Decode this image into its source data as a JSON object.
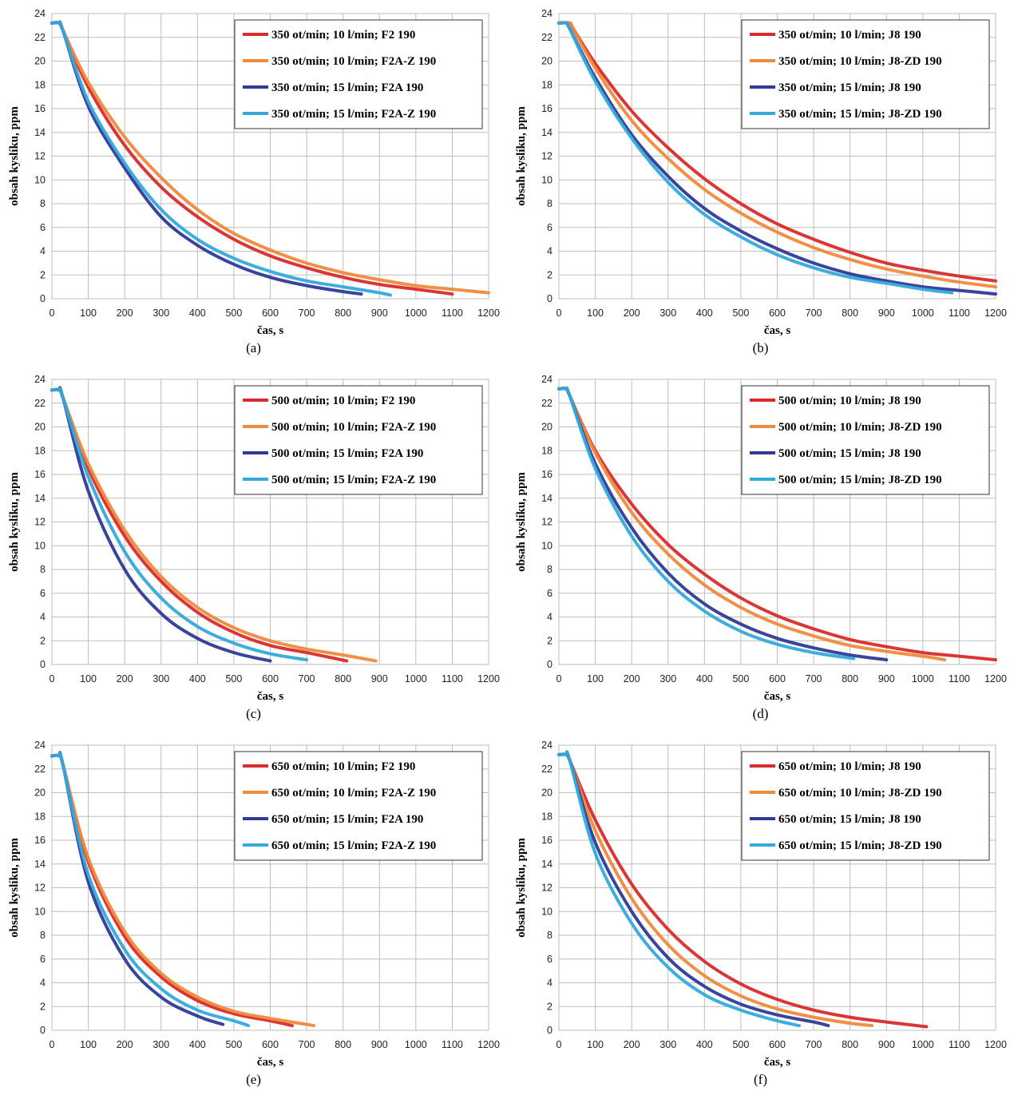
{
  "chart_data": [
    {
      "type": "line",
      "caption": "(a)",
      "xlabel": "čas, s",
      "ylabel": "obsah kyslíku, ppm",
      "xlim": [
        0,
        1200
      ],
      "ylim": [
        0,
        24
      ],
      "xticks": [
        0,
        100,
        200,
        300,
        400,
        500,
        600,
        700,
        800,
        900,
        1000,
        1100,
        1200
      ],
      "yticks": [
        0,
        2,
        4,
        6,
        8,
        10,
        12,
        14,
        16,
        18,
        20,
        22,
        24
      ],
      "grid": true,
      "legend_position": "top-right",
      "series": [
        {
          "name": "350 ot/min; 10 l/min; F2 190",
          "color": "#d92b2b",
          "x": [
            0,
            20,
            30,
            100,
            200,
            300,
            400,
            500,
            600,
            700,
            800,
            900,
            1000,
            1100
          ],
          "y": [
            23.2,
            23.2,
            22.6,
            17.8,
            12.9,
            9.4,
            6.9,
            5.0,
            3.6,
            2.6,
            1.8,
            1.2,
            0.8,
            0.4
          ]
        },
        {
          "name": "350 ot/min; 10 l/min; F2A-Z 190",
          "color": "#ef8a3c",
          "x": [
            0,
            20,
            30,
            100,
            200,
            300,
            400,
            500,
            600,
            700,
            800,
            900,
            1000,
            1100,
            1200
          ],
          "y": [
            23.2,
            23.2,
            22.6,
            18.2,
            13.6,
            10.2,
            7.5,
            5.5,
            4.1,
            3.0,
            2.2,
            1.6,
            1.1,
            0.8,
            0.5
          ]
        },
        {
          "name": "350 ot/min; 15 l/min; F2A 190",
          "color": "#2e3a96",
          "x": [
            0,
            20,
            30,
            100,
            200,
            300,
            400,
            500,
            600,
            700,
            800,
            850
          ],
          "y": [
            23.2,
            23.2,
            22.6,
            16.2,
            11.0,
            6.9,
            4.5,
            2.9,
            1.8,
            1.1,
            0.6,
            0.4
          ]
        },
        {
          "name": "350 ot/min; 15 l/min; F2A-Z 190",
          "color": "#33a9dc",
          "x": [
            0,
            20,
            30,
            100,
            200,
            300,
            400,
            500,
            600,
            700,
            800,
            900,
            930
          ],
          "y": [
            23.2,
            23.2,
            22.6,
            16.6,
            11.4,
            7.5,
            5.0,
            3.4,
            2.3,
            1.5,
            1.0,
            0.5,
            0.3
          ]
        }
      ]
    },
    {
      "type": "line",
      "caption": "(b)",
      "xlabel": "čas, s",
      "ylabel": "obsah kyslíku, ppm",
      "xlim": [
        0,
        1200
      ],
      "ylim": [
        0,
        24
      ],
      "xticks": [
        0,
        100,
        200,
        300,
        400,
        500,
        600,
        700,
        800,
        900,
        1000,
        1100,
        1200
      ],
      "yticks": [
        0,
        2,
        4,
        6,
        8,
        10,
        12,
        14,
        16,
        18,
        20,
        22,
        24
      ],
      "grid": true,
      "legend_position": "top-right",
      "series": [
        {
          "name": "350 ot/min; 10 l/min; J8 190",
          "color": "#d92b2b",
          "x": [
            0,
            30,
            40,
            100,
            200,
            300,
            400,
            500,
            600,
            700,
            800,
            900,
            1000,
            1100,
            1200
          ],
          "y": [
            23.2,
            23.2,
            22.7,
            19.8,
            15.8,
            12.7,
            10.1,
            8.0,
            6.3,
            5.0,
            3.9,
            3.0,
            2.4,
            1.9,
            1.5
          ]
        },
        {
          "name": "350 ot/min; 10 l/min; J8-ZD 190",
          "color": "#ef8a3c",
          "x": [
            0,
            30,
            40,
            100,
            200,
            300,
            400,
            500,
            600,
            700,
            800,
            900,
            1000,
            1100,
            1200
          ],
          "y": [
            23.2,
            23.2,
            22.7,
            19.4,
            15.0,
            11.8,
            9.2,
            7.2,
            5.6,
            4.3,
            3.3,
            2.5,
            1.9,
            1.4,
            1.0
          ]
        },
        {
          "name": "350 ot/min; 15 l/min; J8 190",
          "color": "#2e3a96",
          "x": [
            0,
            20,
            30,
            100,
            200,
            300,
            400,
            500,
            600,
            700,
            800,
            900,
            1000,
            1100,
            1200
          ],
          "y": [
            23.2,
            23.2,
            22.7,
            18.6,
            13.8,
            10.3,
            7.6,
            5.7,
            4.2,
            3.0,
            2.1,
            1.5,
            1.0,
            0.7,
            0.4
          ]
        },
        {
          "name": "350 ot/min; 15 l/min; J8-ZD 190",
          "color": "#33a9dc",
          "x": [
            0,
            20,
            30,
            100,
            200,
            300,
            400,
            500,
            600,
            700,
            800,
            900,
            1000,
            1080
          ],
          "y": [
            23.2,
            23.2,
            22.7,
            18.3,
            13.5,
            9.8,
            7.1,
            5.2,
            3.7,
            2.6,
            1.8,
            1.3,
            0.8,
            0.5
          ]
        }
      ]
    },
    {
      "type": "line",
      "caption": "(c)",
      "xlabel": "čas, s",
      "ylabel": "obsah kyslíku, ppm",
      "xlim": [
        0,
        1200
      ],
      "ylim": [
        0,
        24
      ],
      "xticks": [
        0,
        100,
        200,
        300,
        400,
        500,
        600,
        700,
        800,
        900,
        1000,
        1100,
        1200
      ],
      "yticks": [
        0,
        2,
        4,
        6,
        8,
        10,
        12,
        14,
        16,
        18,
        20,
        22,
        24
      ],
      "grid": true,
      "legend_position": "top-right",
      "series": [
        {
          "name": "500 ot/min; 10 l/min; F2 190",
          "color": "#d92b2b",
          "x": [
            0,
            20,
            30,
            100,
            200,
            300,
            400,
            500,
            600,
            700,
            810
          ],
          "y": [
            23.1,
            23.1,
            22.5,
            16.5,
            10.8,
            7.0,
            4.4,
            2.7,
            1.6,
            1.0,
            0.3
          ]
        },
        {
          "name": "500 ot/min; 10 l/min; F2A-Z 190",
          "color": "#ef8a3c",
          "x": [
            0,
            20,
            30,
            100,
            200,
            300,
            400,
            500,
            600,
            700,
            800,
            890
          ],
          "y": [
            23.1,
            23.1,
            22.5,
            16.9,
            11.3,
            7.4,
            4.8,
            3.1,
            2.0,
            1.3,
            0.8,
            0.3
          ]
        },
        {
          "name": "500 ot/min; 15 l/min; F2A 190",
          "color": "#2e3a96",
          "x": [
            0,
            20,
            30,
            100,
            200,
            300,
            400,
            500,
            600
          ],
          "y": [
            23.1,
            23.1,
            22.5,
            14.6,
            8.0,
            4.3,
            2.2,
            1.0,
            0.3
          ]
        },
        {
          "name": "500 ot/min; 15 l/min; F2A-Z 190",
          "color": "#33a9dc",
          "x": [
            0,
            20,
            30,
            100,
            200,
            300,
            400,
            500,
            600,
            700
          ],
          "y": [
            23.1,
            23.1,
            22.5,
            15.8,
            9.5,
            5.6,
            3.2,
            1.8,
            0.9,
            0.4
          ]
        }
      ]
    },
    {
      "type": "line",
      "caption": "(d)",
      "xlabel": "čas, s",
      "ylabel": "obsah kyslíku, ppm",
      "xlim": [
        0,
        1200
      ],
      "ylim": [
        0,
        24
      ],
      "xticks": [
        0,
        100,
        200,
        300,
        400,
        500,
        600,
        700,
        800,
        900,
        1000,
        1100,
        1200
      ],
      "yticks": [
        0,
        2,
        4,
        6,
        8,
        10,
        12,
        14,
        16,
        18,
        20,
        22,
        24
      ],
      "grid": true,
      "legend_position": "top-right",
      "series": [
        {
          "name": "500 ot/min; 10 l/min; J8 190",
          "color": "#d92b2b",
          "x": [
            0,
            20,
            30,
            100,
            200,
            300,
            400,
            500,
            600,
            700,
            800,
            900,
            1000,
            1100,
            1200
          ],
          "y": [
            23.2,
            23.2,
            22.6,
            18.0,
            13.5,
            10.1,
            7.6,
            5.6,
            4.1,
            3.0,
            2.1,
            1.5,
            1.0,
            0.7,
            0.4
          ]
        },
        {
          "name": "500 ot/min; 10 l/min; J8-ZD 190",
          "color": "#ef8a3c",
          "x": [
            0,
            20,
            30,
            100,
            200,
            300,
            400,
            500,
            600,
            700,
            800,
            900,
            1000,
            1060
          ],
          "y": [
            23.2,
            23.2,
            22.6,
            17.8,
            12.8,
            9.3,
            6.7,
            4.8,
            3.4,
            2.4,
            1.6,
            1.1,
            0.7,
            0.4
          ]
        },
        {
          "name": "500 ot/min; 15 l/min; J8 190",
          "color": "#2e3a96",
          "x": [
            0,
            20,
            30,
            100,
            200,
            300,
            400,
            500,
            600,
            700,
            800,
            900
          ],
          "y": [
            23.2,
            23.2,
            22.6,
            16.9,
            11.5,
            7.7,
            5.1,
            3.4,
            2.2,
            1.4,
            0.8,
            0.4
          ]
        },
        {
          "name": "500 ot/min; 15 l/min; J8-ZD 190",
          "color": "#33a9dc",
          "x": [
            0,
            20,
            30,
            100,
            200,
            300,
            400,
            500,
            600,
            700,
            810
          ],
          "y": [
            23.2,
            23.2,
            22.6,
            16.5,
            10.8,
            7.0,
            4.5,
            2.8,
            1.7,
            1.0,
            0.5
          ]
        }
      ]
    },
    {
      "type": "line",
      "caption": "(e)",
      "xlabel": "čas, s",
      "ylabel": "obsah kyslíku, ppm",
      "xlim": [
        0,
        1200
      ],
      "ylim": [
        0,
        24
      ],
      "xticks": [
        0,
        100,
        200,
        300,
        400,
        500,
        600,
        700,
        800,
        900,
        1000,
        1100,
        1200
      ],
      "yticks": [
        0,
        2,
        4,
        6,
        8,
        10,
        12,
        14,
        16,
        18,
        20,
        22,
        24
      ],
      "grid": true,
      "legend_position": "top-right",
      "series": [
        {
          "name": "650 ot/min; 10 l/min; F2 190",
          "color": "#d92b2b",
          "x": [
            0,
            20,
            30,
            100,
            200,
            300,
            400,
            500,
            600,
            660
          ],
          "y": [
            23.1,
            23.1,
            22.4,
            14.2,
            7.9,
            4.5,
            2.5,
            1.4,
            0.8,
            0.4
          ]
        },
        {
          "name": "650 ot/min; 10 l/min; F2A-Z 190",
          "color": "#ef8a3c",
          "x": [
            0,
            20,
            30,
            100,
            200,
            300,
            400,
            500,
            600,
            720
          ],
          "y": [
            23.1,
            23.1,
            22.4,
            14.5,
            8.3,
            4.8,
            2.8,
            1.6,
            1.0,
            0.4
          ]
        },
        {
          "name": "650 ot/min; 15 l/min; F2A 190",
          "color": "#2e3a96",
          "x": [
            0,
            20,
            30,
            100,
            200,
            300,
            400,
            470
          ],
          "y": [
            23.1,
            23.1,
            22.4,
            12.5,
            6.0,
            2.8,
            1.2,
            0.5
          ]
        },
        {
          "name": "650 ot/min; 15 l/min; F2A-Z 190",
          "color": "#33a9dc",
          "x": [
            0,
            20,
            30,
            100,
            200,
            300,
            400,
            500,
            540
          ],
          "y": [
            23.1,
            23.1,
            22.4,
            13.1,
            6.8,
            3.5,
            1.7,
            0.8,
            0.4
          ]
        }
      ]
    },
    {
      "type": "line",
      "caption": "(f)",
      "xlabel": "čas, s",
      "ylabel": "obsah kyslíku, ppm",
      "xlim": [
        0,
        1200
      ],
      "ylim": [
        0,
        24
      ],
      "xticks": [
        0,
        100,
        200,
        300,
        400,
        500,
        600,
        700,
        800,
        900,
        1000,
        1100,
        1200
      ],
      "yticks": [
        0,
        2,
        4,
        6,
        8,
        10,
        12,
        14,
        16,
        18,
        20,
        22,
        24
      ],
      "grid": true,
      "legend_position": "top-right",
      "series": [
        {
          "name": "650 ot/min; 10 l/min; J8 190",
          "color": "#d92b2b",
          "x": [
            0,
            20,
            30,
            100,
            200,
            300,
            400,
            500,
            600,
            700,
            800,
            900,
            1010
          ],
          "y": [
            23.2,
            23.2,
            22.7,
            17.7,
            12.3,
            8.5,
            5.8,
            3.9,
            2.6,
            1.7,
            1.1,
            0.7,
            0.3
          ]
        },
        {
          "name": "650 ot/min; 10 l/min; J8-ZD 190",
          "color": "#ef8a3c",
          "x": [
            0,
            20,
            30,
            100,
            200,
            300,
            400,
            500,
            600,
            700,
            800,
            860
          ],
          "y": [
            23.2,
            23.2,
            22.7,
            16.8,
            11.1,
            7.2,
            4.6,
            2.9,
            1.8,
            1.1,
            0.6,
            0.4
          ]
        },
        {
          "name": "650 ot/min; 15 l/min; J8 190",
          "color": "#2e3a96",
          "x": [
            0,
            20,
            30,
            100,
            200,
            300,
            400,
            500,
            600,
            700,
            740
          ],
          "y": [
            23.2,
            23.2,
            22.7,
            15.8,
            10.0,
            6.1,
            3.7,
            2.2,
            1.3,
            0.7,
            0.4
          ]
        },
        {
          "name": "650 ot/min; 15 l/min; J8-ZD 190",
          "color": "#33a9dc",
          "x": [
            0,
            20,
            30,
            100,
            200,
            300,
            400,
            500,
            600,
            660
          ],
          "y": [
            23.2,
            23.2,
            22.7,
            14.9,
            9.0,
            5.3,
            3.0,
            1.7,
            0.8,
            0.4
          ]
        }
      ]
    }
  ]
}
